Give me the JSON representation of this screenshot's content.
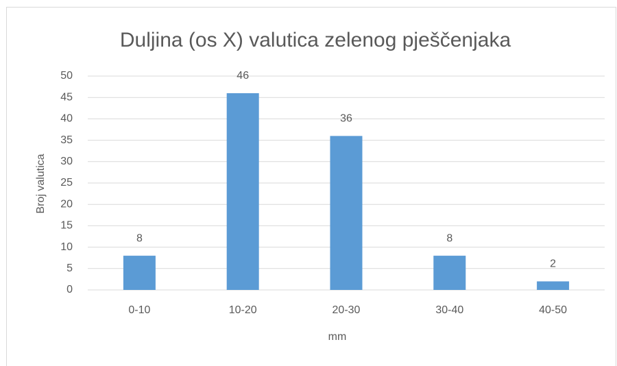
{
  "chart_data": {
    "type": "bar",
    "title": "Duljina (os X) valutica zelenog pješčenjaka",
    "x_label": "mm",
    "y_label": "Broj valutica",
    "categories": [
      "0-10",
      "10-20",
      "20-30",
      "30-40",
      "40-50"
    ],
    "values": [
      8,
      46,
      36,
      8,
      2
    ],
    "color": "#5b9bd5",
    "ylim": [
      0,
      50
    ],
    "yticks": [
      0,
      5,
      10,
      15,
      20,
      25,
      30,
      35,
      40,
      45,
      50
    ],
    "grid": true,
    "data_labels": true
  }
}
